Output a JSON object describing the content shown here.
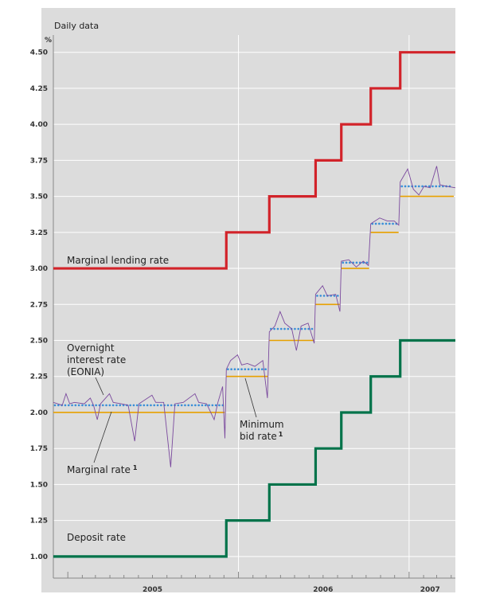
{
  "chart_data": {
    "type": "line",
    "title": "Daily data",
    "ylabel": "%",
    "ylim": [
      0.85,
      4.62
    ],
    "xlim": [
      "2004-12-01",
      "2007-04-10"
    ],
    "yticks": [
      "1.00",
      "1.25",
      "1.50",
      "1.75",
      "2.00",
      "2.25",
      "2.50",
      "2.75",
      "3.00",
      "3.25",
      "3.50",
      "3.75",
      "4.00",
      "4.25",
      "4.50"
    ],
    "xticks": [
      {
        "label": "2005",
        "date": "2005-07-01"
      },
      {
        "label": "2006",
        "date": "2006-07-01"
      },
      {
        "label": "2007",
        "date": "2007-02-15"
      }
    ],
    "year_separators": [
      "2006-01-01",
      "2007-01-01"
    ],
    "grid": true,
    "series": [
      {
        "name": "Marginal lending rate",
        "color": "#d2232a",
        "style": "step",
        "points": [
          [
            "2004-12-01",
            3.0
          ],
          [
            "2005-12-06",
            3.25
          ],
          [
            "2006-03-08",
            3.5
          ],
          [
            "2006-06-15",
            3.75
          ],
          [
            "2006-08-09",
            4.0
          ],
          [
            "2006-10-11",
            4.25
          ],
          [
            "2006-12-13",
            4.5
          ],
          [
            "2007-04-10",
            4.5
          ]
        ]
      },
      {
        "name": "Deposit rate",
        "color": "#00734a",
        "style": "step",
        "points": [
          [
            "2004-12-01",
            1.0
          ],
          [
            "2005-12-06",
            1.25
          ],
          [
            "2006-03-08",
            1.5
          ],
          [
            "2006-06-15",
            1.75
          ],
          [
            "2006-08-09",
            2.0
          ],
          [
            "2006-10-11",
            2.25
          ],
          [
            "2006-12-13",
            2.5
          ],
          [
            "2007-04-10",
            2.5
          ]
        ]
      },
      {
        "name": "Minimum bid rate",
        "color": "#e8a100",
        "style": "segments",
        "segments": [
          [
            "2004-12-01",
            "2005-12-06",
            2.0
          ],
          [
            "2005-12-06",
            "2006-03-08",
            2.25
          ],
          [
            "2006-03-08",
            "2006-06-15",
            2.5
          ],
          [
            "2006-06-15",
            "2006-08-09",
            2.75
          ],
          [
            "2006-08-09",
            "2006-10-11",
            3.0
          ],
          [
            "2006-10-11",
            "2006-12-13",
            3.25
          ],
          [
            "2006-12-13",
            "2007-04-10",
            3.5
          ]
        ]
      },
      {
        "name": "Marginal rate",
        "color": "#3a8fd8",
        "style": "dotted",
        "segments": [
          [
            "2004-12-01",
            "2005-12-06",
            2.05
          ],
          [
            "2005-12-06",
            "2006-03-08",
            2.3
          ],
          [
            "2006-03-08",
            "2006-06-15",
            2.58
          ],
          [
            "2006-06-15",
            "2006-08-09",
            2.81
          ],
          [
            "2006-08-09",
            "2006-10-11",
            3.04
          ],
          [
            "2006-10-11",
            "2006-12-13",
            3.31
          ],
          [
            "2006-12-13",
            "2007-04-10",
            3.57
          ]
        ]
      },
      {
        "name": "Overnight interest rate (EONIA)",
        "color": "#7b4a9e",
        "style": "line",
        "points": [
          [
            "2004-12-01",
            2.07
          ],
          [
            "2004-12-20",
            2.05
          ],
          [
            "2004-12-28",
            2.13
          ],
          [
            "2005-01-05",
            2.06
          ],
          [
            "2005-01-15",
            2.07
          ],
          [
            "2005-02-05",
            2.06
          ],
          [
            "2005-02-18",
            2.1
          ],
          [
            "2005-02-25",
            2.05
          ],
          [
            "2005-03-05",
            1.95
          ],
          [
            "2005-03-12",
            2.06
          ],
          [
            "2005-03-31",
            2.13
          ],
          [
            "2005-04-08",
            2.07
          ],
          [
            "2005-04-25",
            2.06
          ],
          [
            "2005-05-10",
            2.05
          ],
          [
            "2005-05-24",
            1.8
          ],
          [
            "2005-06-02",
            2.06
          ],
          [
            "2005-06-30",
            2.12
          ],
          [
            "2005-07-08",
            2.07
          ],
          [
            "2005-07-25",
            2.07
          ],
          [
            "2005-08-09",
            1.62
          ],
          [
            "2005-08-18",
            2.06
          ],
          [
            "2005-09-05",
            2.07
          ],
          [
            "2005-09-30",
            2.13
          ],
          [
            "2005-10-08",
            2.07
          ],
          [
            "2005-10-25",
            2.06
          ],
          [
            "2005-11-10",
            1.95
          ],
          [
            "2005-11-18",
            2.07
          ],
          [
            "2005-11-28",
            2.18
          ],
          [
            "2005-12-03",
            1.82
          ],
          [
            "2005-12-06",
            2.3
          ],
          [
            "2005-12-15",
            2.36
          ],
          [
            "2005-12-30",
            2.4
          ],
          [
            "2006-01-08",
            2.33
          ],
          [
            "2006-01-20",
            2.34
          ],
          [
            "2006-02-05",
            2.32
          ],
          [
            "2006-02-22",
            2.36
          ],
          [
            "2006-03-04",
            2.1
          ],
          [
            "2006-03-08",
            2.56
          ],
          [
            "2006-03-20",
            2.6
          ],
          [
            "2006-03-31",
            2.7
          ],
          [
            "2006-04-10",
            2.62
          ],
          [
            "2006-04-25",
            2.58
          ],
          [
            "2006-05-05",
            2.43
          ],
          [
            "2006-05-15",
            2.6
          ],
          [
            "2006-05-30",
            2.62
          ],
          [
            "2006-06-12",
            2.48
          ],
          [
            "2006-06-15",
            2.82
          ],
          [
            "2006-06-30",
            2.88
          ],
          [
            "2006-07-10",
            2.81
          ],
          [
            "2006-07-28",
            2.82
          ],
          [
            "2006-08-06",
            2.7
          ],
          [
            "2006-08-09",
            3.05
          ],
          [
            "2006-08-25",
            3.06
          ],
          [
            "2006-09-10",
            3.01
          ],
          [
            "2006-09-25",
            3.05
          ],
          [
            "2006-10-06",
            3.02
          ],
          [
            "2006-10-11",
            3.31
          ],
          [
            "2006-10-30",
            3.35
          ],
          [
            "2006-11-15",
            3.33
          ],
          [
            "2006-11-30",
            3.33
          ],
          [
            "2006-12-10",
            3.3
          ],
          [
            "2006-12-13",
            3.6
          ],
          [
            "2006-12-29",
            3.69
          ],
          [
            "2007-01-10",
            3.55
          ],
          [
            "2007-01-22",
            3.51
          ],
          [
            "2007-02-02",
            3.57
          ],
          [
            "2007-02-15",
            3.56
          ],
          [
            "2007-03-01",
            3.71
          ],
          [
            "2007-03-08",
            3.58
          ],
          [
            "2007-03-22",
            3.57
          ],
          [
            "2007-04-10",
            3.56
          ]
        ]
      }
    ],
    "annotations": {
      "marginal_lending": "Marginal lending rate",
      "deposit": "Deposit rate",
      "eonia_1": "Overnight",
      "eonia_2": "interest rate",
      "eonia_3": "(EONIA)",
      "marginal_rate": "Marginal rate",
      "min_bid_1": "Minimum",
      "min_bid_2": "bid rate",
      "footnote_mark": "1"
    }
  }
}
